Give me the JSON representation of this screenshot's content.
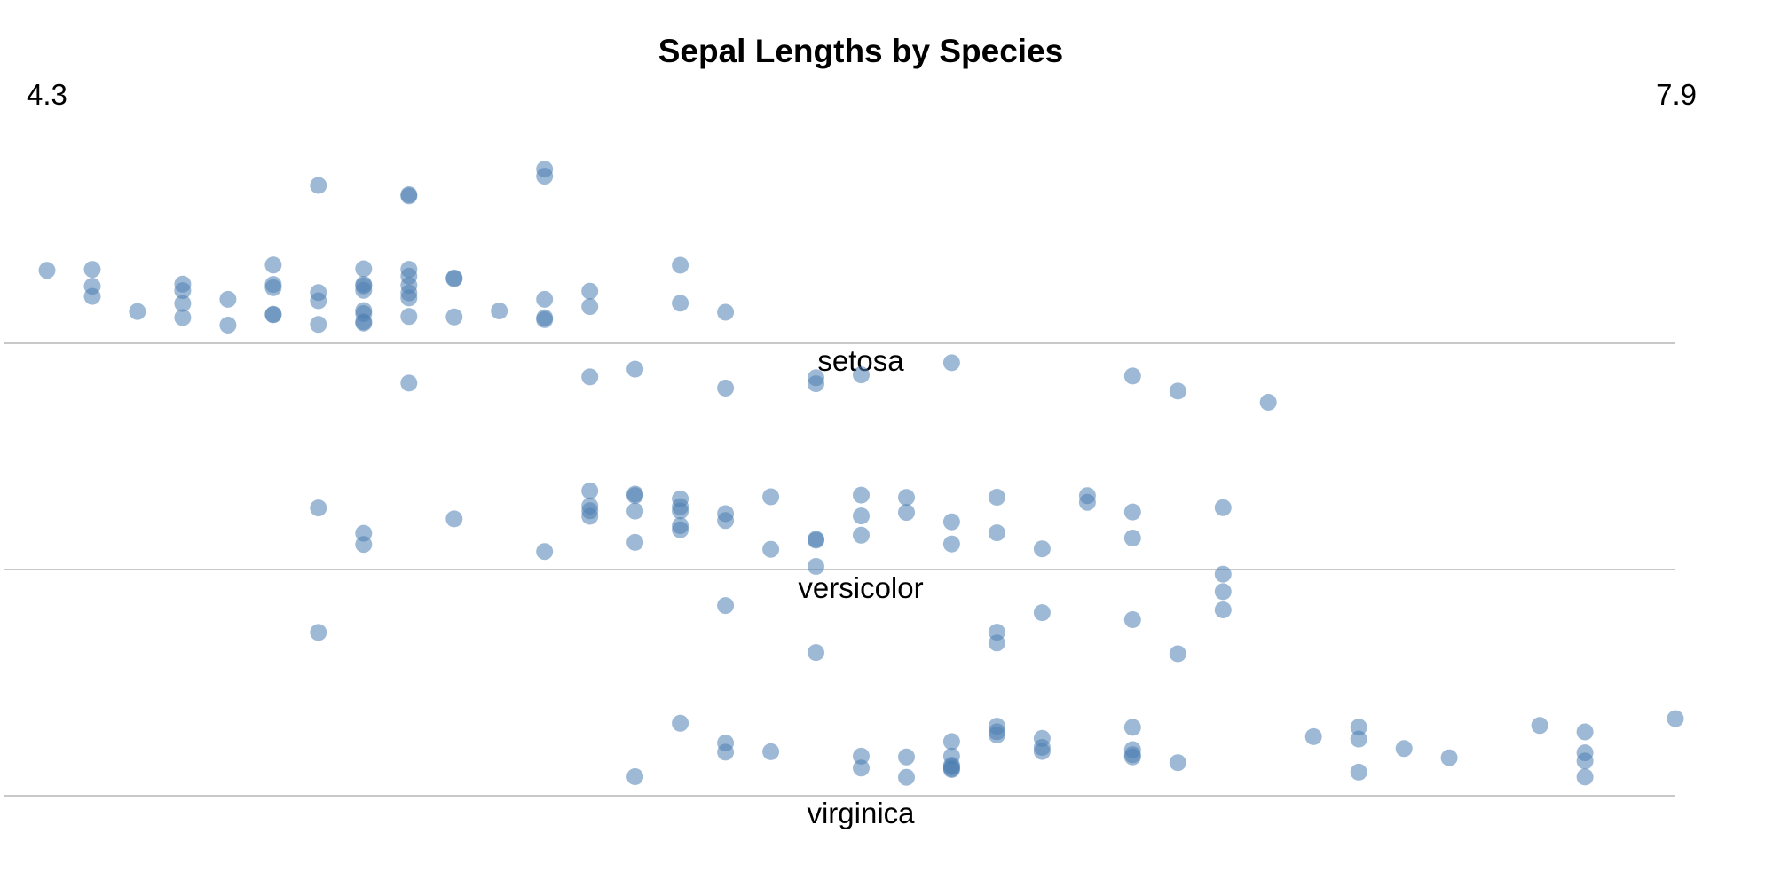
{
  "chart_data": {
    "type": "scatter",
    "title": "Sepal Lengths by Species",
    "x_min_label": "4.3",
    "x_max_label": "7.9",
    "xlim": [
      4.3,
      7.9
    ],
    "point_color": "#4f7fb3",
    "baseline_color": "#c8c8c8",
    "groups": [
      {
        "name": "setosa",
        "values": [
          5.1,
          4.9,
          4.7,
          4.6,
          5.0,
          5.4,
          4.6,
          5.0,
          4.4,
          4.9,
          5.4,
          4.8,
          4.8,
          4.3,
          5.8,
          5.7,
          5.4,
          5.1,
          5.7,
          5.1,
          5.4,
          5.1,
          4.6,
          5.1,
          4.8,
          5.0,
          5.0,
          5.2,
          5.2,
          4.7,
          4.8,
          5.4,
          5.2,
          5.5,
          4.9,
          5.0,
          5.5,
          4.9,
          4.4,
          5.1,
          5.0,
          4.5,
          4.4,
          5.0,
          5.1,
          4.8,
          5.1,
          4.6,
          5.3,
          5.0
        ]
      },
      {
        "name": "versicolor",
        "values": [
          7.0,
          6.4,
          6.9,
          5.5,
          6.5,
          5.7,
          6.3,
          4.9,
          6.6,
          5.2,
          5.0,
          5.9,
          6.0,
          6.1,
          5.6,
          6.7,
          5.6,
          5.8,
          6.2,
          5.6,
          5.9,
          6.1,
          6.3,
          6.1,
          6.4,
          6.6,
          6.8,
          6.7,
          6.0,
          5.7,
          5.5,
          5.5,
          5.8,
          6.0,
          5.4,
          6.0,
          6.7,
          6.3,
          5.6,
          5.5,
          5.5,
          6.1,
          5.8,
          5.0,
          5.6,
          5.7,
          5.7,
          6.2,
          5.1,
          5.7
        ]
      },
      {
        "name": "virginica",
        "values": [
          6.3,
          5.8,
          7.1,
          6.3,
          6.5,
          7.6,
          4.9,
          7.3,
          6.7,
          7.2,
          6.5,
          6.4,
          6.8,
          5.7,
          5.8,
          6.4,
          6.5,
          7.7,
          7.7,
          6.0,
          6.9,
          5.6,
          7.7,
          6.3,
          6.7,
          7.2,
          6.2,
          6.1,
          6.4,
          7.2,
          7.4,
          7.9,
          6.4,
          6.3,
          6.1,
          7.7,
          6.3,
          6.4,
          6.0,
          6.9,
          6.7,
          6.9,
          5.8,
          6.8,
          6.7,
          6.7,
          6.3,
          6.5,
          6.2,
          5.9
        ]
      }
    ]
  }
}
